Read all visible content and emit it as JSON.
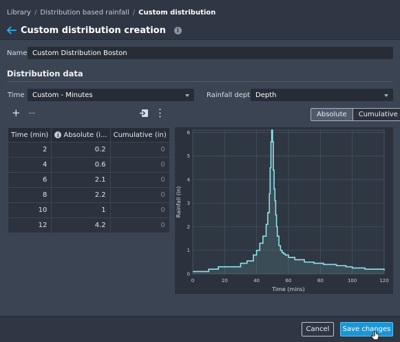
{
  "breadcrumb": {
    "items": [
      "Library",
      "Distribution based rainfall"
    ],
    "current": "Custom distribution",
    "separator": "/"
  },
  "page": {
    "title": "Custom distribution creation",
    "info_icon": "i",
    "back_icon": "arrow-left-icon",
    "accent_color": "#1a96d6"
  },
  "form": {
    "name_label": "Name",
    "name_value": "Custom Distribution Boston",
    "section_title": "Distribution data",
    "time_label": "Time",
    "time_value": "Custom - Minutes",
    "rainfall_label": "Rainfall depth",
    "rainfall_value": "Depth"
  },
  "toolbar": {
    "add": "+",
    "remove": "−",
    "more": "⋮"
  },
  "view_toggle": {
    "absolute": "Absolute",
    "cumulative": "Cumulative",
    "selected": "Absolute"
  },
  "table": {
    "headers": [
      "Time (min)",
      "Absolute (i...",
      "Cumulative (in)"
    ],
    "header_info_icon": "i",
    "rows": [
      [
        "2",
        "0.2",
        "0"
      ],
      [
        "4",
        "0.6",
        "0"
      ],
      [
        "6",
        "2.1",
        "0"
      ],
      [
        "8",
        "2.2",
        "0"
      ],
      [
        "10",
        "1",
        "0"
      ],
      [
        "12",
        "4.2",
        "0"
      ]
    ]
  },
  "chart_data": {
    "type": "area",
    "title": "",
    "xlabel": "Time (mins)",
    "ylabel": "Rainfall (in)",
    "xlim": [
      0,
      120
    ],
    "ylim": [
      0,
      6.1
    ],
    "xticks": [
      0,
      20,
      40,
      60,
      80,
      100,
      120
    ],
    "yticks": [
      0,
      1,
      2,
      3,
      4,
      5,
      6
    ],
    "grid": true,
    "line_color": "#8fe3ea",
    "x": [
      0,
      10,
      16,
      30,
      34,
      38,
      40,
      42,
      44,
      46,
      47,
      48,
      48.5,
      49,
      49.5,
      50,
      50.5,
      51,
      51.5,
      52,
      52.5,
      53,
      54,
      55,
      56,
      57,
      58,
      60,
      64,
      70,
      76,
      82,
      90,
      96,
      100,
      108,
      120
    ],
    "y": [
      0.1,
      0.2,
      0.3,
      0.45,
      0.55,
      0.8,
      1.0,
      1.3,
      1.6,
      2.1,
      2.6,
      3.4,
      4.5,
      5.6,
      6.1,
      5.6,
      4.4,
      3.6,
      3.1,
      2.5,
      2.0,
      1.6,
      1.2,
      1.0,
      0.9,
      0.85,
      0.8,
      0.7,
      0.6,
      0.5,
      0.45,
      0.4,
      0.35,
      0.3,
      0.25,
      0.2,
      0.15
    ]
  },
  "footer": {
    "cancel": "Cancel",
    "save": "Save changes"
  }
}
